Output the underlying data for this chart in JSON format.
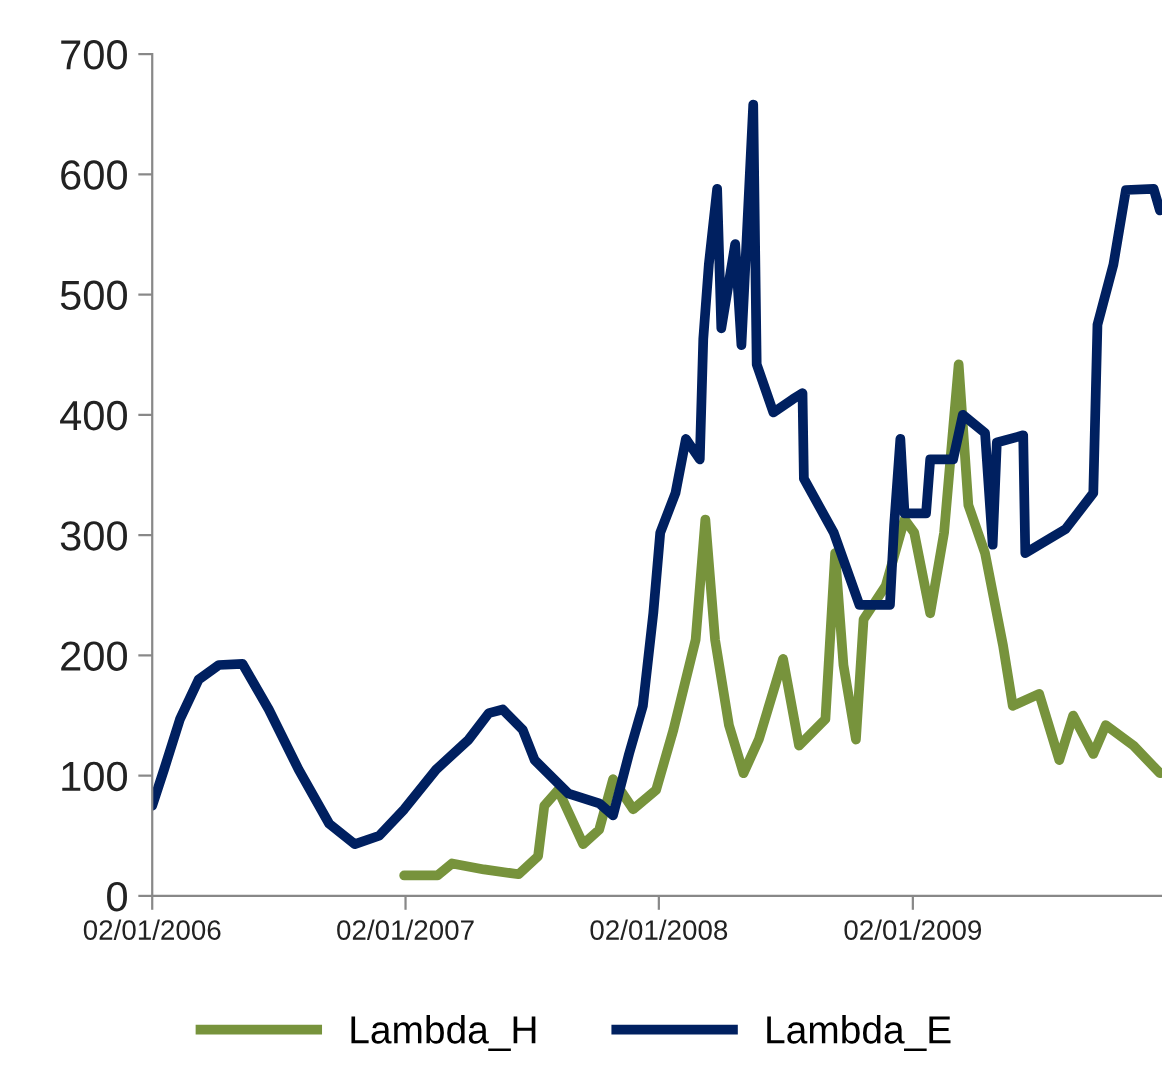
{
  "chart_data": {
    "type": "line",
    "xlim": [
      "2006-01-02",
      "2009-12-27"
    ],
    "ylim": [
      0,
      700
    ],
    "yticks": [
      0,
      100,
      200,
      300,
      400,
      500,
      600,
      700
    ],
    "xticks": [
      {
        "value": "2006-01-02",
        "label": "02/01/2006"
      },
      {
        "value": "2007-01-02",
        "label": "02/01/2007"
      },
      {
        "value": "2008-01-02",
        "label": "02/01/2008"
      },
      {
        "value": "2009-01-02",
        "label": "02/01/2009"
      }
    ],
    "grid": false,
    "legend": "bottom",
    "marker": "none",
    "line_style": "solid",
    "series": [
      {
        "name": "Lambda_H",
        "color": "#77933c",
        "x": [
          "2006-12-31",
          "2007-02-17",
          "2007-03-10",
          "2007-04-25",
          "2007-06-14",
          "2007-07-12",
          "2007-07-21",
          "2007-08-10",
          "2007-09-15",
          "2007-10-08",
          "2007-10-28",
          "2007-11-26",
          "2007-12-29",
          "2008-01-23",
          "2008-02-24",
          "2008-03-09",
          "2008-03-23",
          "2008-04-12",
          "2008-05-03",
          "2008-05-25",
          "2008-06-29",
          "2008-07-22",
          "2008-08-29",
          "2008-09-12",
          "2008-09-24",
          "2008-10-12",
          "2008-10-23",
          "2008-11-24",
          "2008-12-21",
          "2009-01-04",
          "2009-01-27",
          "2009-02-16",
          "2009-03-09",
          "2009-03-23",
          "2009-04-16",
          "2009-05-12",
          "2009-05-26",
          "2009-07-03",
          "2009-08-01",
          "2009-08-21",
          "2009-09-19",
          "2009-10-07",
          "2009-11-16",
          "2009-12-24"
        ],
        "values": [
          17,
          17,
          27,
          22,
          18,
          33,
          75,
          88,
          43,
          55,
          97,
          72,
          88,
          138,
          213,
          313,
          213,
          142,
          102,
          130,
          197,
          125,
          147,
          285,
          192,
          130,
          230,
          258,
          313,
          302,
          235,
          302,
          442,
          325,
          285,
          208,
          158,
          168,
          113,
          150,
          118,
          142,
          125,
          102
        ]
      },
      {
        "name": "Lambda_E",
        "color": "#002060",
        "x": [
          "2006-01-02",
          "2006-01-19",
          "2006-02-11",
          "2006-03-10",
          "2006-04-08",
          "2006-05-12",
          "2006-06-19",
          "2006-08-01",
          "2006-09-14",
          "2006-10-21",
          "2006-11-25",
          "2006-12-31",
          "2007-02-15",
          "2007-04-03",
          "2007-05-02",
          "2007-05-22",
          "2007-06-20",
          "2007-07-07",
          "2007-08-25",
          "2007-10-08",
          "2007-10-28",
          "2007-11-20",
          "2007-12-10",
          "2007-12-25",
          "2008-01-04",
          "2008-01-26",
          "2008-02-10",
          "2008-03-01",
          "2008-03-06",
          "2008-03-14",
          "2008-03-26",
          "2008-04-01",
          "2008-04-21",
          "2008-04-30",
          "2008-05-17",
          "2008-05-22",
          "2008-06-15",
          "2008-07-13",
          "2008-07-27",
          "2008-07-29",
          "2008-09-10",
          "2008-10-17",
          "2008-11-30",
          "2008-12-06",
          "2008-12-15",
          "2008-12-21",
          "2009-01-21",
          "2009-01-27",
          "2009-03-01",
          "2009-03-15",
          "2009-04-16",
          "2009-04-27",
          "2009-05-03",
          "2009-06-10",
          "2009-06-13",
          "2009-08-10",
          "2009-09-19",
          "2009-09-25",
          "2009-10-18",
          "2009-11-05",
          "2009-12-15",
          "2009-12-24"
        ],
        "values": [
          75,
          105,
          147,
          180,
          192,
          193,
          155,
          105,
          60,
          43,
          50,
          72,
          105,
          130,
          152,
          155,
          138,
          113,
          85,
          77,
          67,
          118,
          158,
          235,
          302,
          335,
          380,
          363,
          463,
          525,
          588,
          472,
          542,
          458,
          658,
          442,
          402,
          413,
          418,
          347,
          302,
          242,
          242,
          308,
          380,
          318,
          318,
          363,
          363,
          400,
          385,
          292,
          377,
          383,
          285,
          305,
          335,
          475,
          525,
          587,
          588,
          570
        ]
      }
    ]
  }
}
